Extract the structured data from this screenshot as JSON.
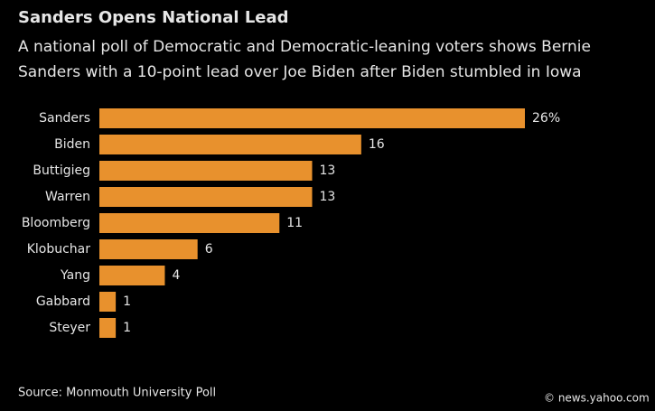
{
  "chart_data": {
    "type": "bar",
    "orientation": "horizontal",
    "title": "Sanders Opens National Lead",
    "subtitle": [
      "A national poll of Democratic and Democratic-leaning voters shows Bernie",
      "Sanders with a 10-point lead over Joe Biden after Biden stumbled in Iowa"
    ],
    "categories": [
      "Sanders",
      "Biden",
      "Buttigieg",
      "Warren",
      "Bloomberg",
      "Klobuchar",
      "Yang",
      "Gabbard",
      "Steyer"
    ],
    "values": [
      26,
      16,
      13,
      13,
      11,
      6,
      4,
      1,
      1
    ],
    "value_labels": [
      "26%",
      "16",
      "13",
      "13",
      "11",
      "6",
      "4",
      "1",
      "1"
    ],
    "color": "#e8912d",
    "source": "Source: Monmouth University Poll",
    "watermark": "© news.yahoo.com"
  }
}
